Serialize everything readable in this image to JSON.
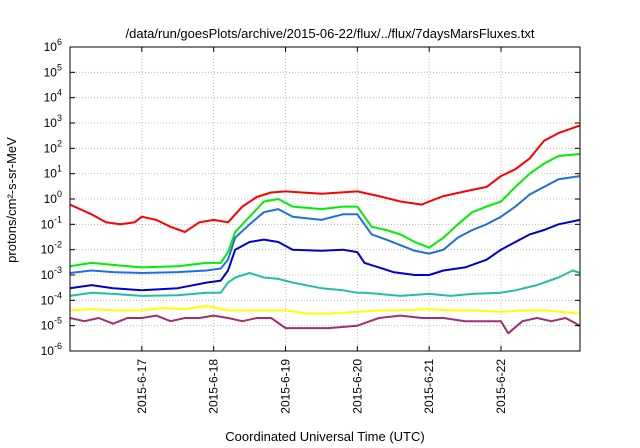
{
  "chart_data": {
    "type": "line",
    "title": "/data/run/goesPlots/archive/2015-06-22/flux/../flux/7daysMarsFluxes.txt",
    "xlabel": "Coordinated Universal Time (UTC)",
    "ylabel": "protons/cm²-s-sr-MeV",
    "y_scale": "log",
    "ylim": [
      1e-06,
      1000000.0
    ],
    "y_ticks": [
      {
        "value": 1e-06,
        "base": "10",
        "exp": "-6"
      },
      {
        "value": 1e-05,
        "base": "10",
        "exp": "-5"
      },
      {
        "value": 0.0001,
        "base": "10",
        "exp": "-4"
      },
      {
        "value": 0.001,
        "base": "10",
        "exp": "-3"
      },
      {
        "value": 0.01,
        "base": "10",
        "exp": "-2"
      },
      {
        "value": 0.1,
        "base": "10",
        "exp": "-1"
      },
      {
        "value": 1,
        "base": "10",
        "exp": "0"
      },
      {
        "value": 10,
        "base": "10",
        "exp": "1"
      },
      {
        "value": 100,
        "base": "10",
        "exp": "2"
      },
      {
        "value": 1000,
        "base": "10",
        "exp": "3"
      },
      {
        "value": 10000,
        "base": "10",
        "exp": "4"
      },
      {
        "value": 100000,
        "base": "10",
        "exp": "5"
      },
      {
        "value": 1000000,
        "base": "10",
        "exp": "6"
      }
    ],
    "xlim": [
      0,
      7.1
    ],
    "x_ticks": [
      {
        "value": 1,
        "label": "2015-6-17"
      },
      {
        "value": 2,
        "label": "2015-6-18"
      },
      {
        "value": 3,
        "label": "2015-6-19"
      },
      {
        "value": 4,
        "label": "2015-6-20"
      },
      {
        "value": 5,
        "label": "2015-6-21"
      },
      {
        "value": 6,
        "label": "2015-6-22"
      }
    ],
    "grid": true,
    "series": [
      {
        "color": "#ff0000",
        "x": [
          0,
          0.3,
          0.5,
          0.7,
          0.9,
          1.0,
          1.2,
          1.4,
          1.6,
          1.8,
          2.0,
          2.2,
          2.4,
          2.6,
          2.8,
          3.0,
          3.5,
          4.0,
          4.3,
          4.6,
          4.9,
          5.0,
          5.2,
          5.5,
          5.8,
          6.0,
          6.2,
          6.4,
          6.6,
          6.8,
          7.1
        ],
        "y": [
          0.6,
          0.25,
          0.12,
          0.1,
          0.12,
          0.2,
          0.15,
          0.08,
          0.05,
          0.12,
          0.15,
          0.12,
          0.5,
          1.2,
          1.8,
          2.0,
          1.6,
          2.0,
          1.3,
          0.8,
          0.6,
          0.8,
          1.3,
          2.0,
          3.0,
          8,
          15,
          40,
          200,
          400,
          800
        ]
      },
      {
        "color": "#00ee00",
        "x": [
          0,
          0.3,
          0.6,
          1.0,
          1.5,
          1.9,
          2.1,
          2.2,
          2.3,
          2.5,
          2.7,
          2.9,
          3.1,
          3.5,
          3.8,
          4.0,
          4.2,
          4.4,
          4.6,
          4.8,
          5.0,
          5.2,
          5.4,
          5.6,
          5.8,
          6.0,
          6.2,
          6.4,
          6.6,
          6.8,
          7.1
        ],
        "y": [
          0.0022,
          0.003,
          0.0025,
          0.002,
          0.0022,
          0.003,
          0.003,
          0.008,
          0.05,
          0.2,
          0.8,
          1.0,
          0.5,
          0.4,
          0.5,
          0.5,
          0.08,
          0.06,
          0.04,
          0.02,
          0.012,
          0.03,
          0.1,
          0.3,
          0.5,
          0.8,
          3,
          10,
          25,
          50,
          60
        ]
      },
      {
        "color": "#1e70e0",
        "x": [
          0,
          0.3,
          0.6,
          1.0,
          1.5,
          1.9,
          2.1,
          2.2,
          2.3,
          2.5,
          2.7,
          2.9,
          3.1,
          3.5,
          3.8,
          4.0,
          4.2,
          4.4,
          4.6,
          4.8,
          5.0,
          5.2,
          5.4,
          5.6,
          5.8,
          6.0,
          6.2,
          6.4,
          6.6,
          6.8,
          7.1
        ],
        "y": [
          0.0012,
          0.0015,
          0.0013,
          0.0012,
          0.0013,
          0.0015,
          0.0018,
          0.004,
          0.03,
          0.1,
          0.3,
          0.4,
          0.2,
          0.15,
          0.25,
          0.25,
          0.04,
          0.025,
          0.015,
          0.009,
          0.007,
          0.01,
          0.03,
          0.06,
          0.1,
          0.2,
          0.5,
          1.5,
          3,
          6,
          8
        ]
      },
      {
        "color": "#0000d0",
        "x": [
          0,
          0.3,
          0.6,
          1.0,
          1.5,
          1.9,
          2.1,
          2.2,
          2.3,
          2.5,
          2.7,
          2.9,
          3.1,
          3.5,
          3.8,
          4.0,
          4.1,
          4.3,
          4.5,
          4.8,
          5.0,
          5.2,
          5.5,
          5.8,
          6.0,
          6.2,
          6.4,
          6.6,
          6.8,
          7.1
        ],
        "y": [
          0.0003,
          0.0004,
          0.0003,
          0.00025,
          0.0003,
          0.0005,
          0.0006,
          0.0015,
          0.01,
          0.02,
          0.025,
          0.02,
          0.01,
          0.009,
          0.01,
          0.008,
          0.003,
          0.002,
          0.0013,
          0.001,
          0.001,
          0.0015,
          0.002,
          0.004,
          0.01,
          0.02,
          0.04,
          0.06,
          0.1,
          0.15
        ]
      },
      {
        "color": "#20c0a0",
        "x": [
          0,
          0.3,
          0.6,
          1.0,
          1.5,
          1.9,
          2.1,
          2.2,
          2.3,
          2.5,
          2.7,
          2.9,
          3.1,
          3.5,
          3.8,
          4.0,
          4.1,
          4.3,
          4.6,
          5.0,
          5.3,
          5.6,
          6.0,
          6.2,
          6.5,
          6.8,
          7.0,
          7.1
        ],
        "y": [
          0.00015,
          0.0002,
          0.00018,
          0.00015,
          0.00016,
          0.0002,
          0.0002,
          0.0005,
          0.0008,
          0.0012,
          0.0008,
          0.0007,
          0.0005,
          0.0003,
          0.00025,
          0.0002,
          0.0002,
          0.00018,
          0.00015,
          0.00018,
          0.00015,
          0.00018,
          0.0002,
          0.00025,
          0.0004,
          0.0008,
          0.0015,
          0.0012
        ]
      },
      {
        "color": "#ffff00",
        "x": [
          0,
          0.3,
          0.6,
          1.0,
          1.3,
          1.6,
          1.9,
          2.2,
          2.5,
          2.8,
          3.0,
          3.3,
          3.6,
          4.0,
          4.3,
          4.6,
          5.0,
          5.3,
          5.6,
          6.0,
          6.3,
          6.6,
          7.1
        ],
        "y": [
          4e-05,
          4.5e-05,
          4e-05,
          4e-05,
          5e-05,
          4.5e-05,
          6e-05,
          4e-05,
          4e-05,
          4e-05,
          4e-05,
          3e-05,
          3e-05,
          3.5e-05,
          4e-05,
          4e-05,
          4.5e-05,
          4e-05,
          4e-05,
          3.5e-05,
          4e-05,
          4e-05,
          3e-05
        ]
      },
      {
        "color": "#a03070",
        "x": [
          0,
          0.2,
          0.4,
          0.6,
          0.8,
          1.0,
          1.2,
          1.4,
          1.6,
          1.8,
          2.0,
          2.2,
          2.4,
          2.6,
          2.8,
          3.0,
          3.3,
          3.6,
          4.0,
          4.3,
          4.6,
          4.9,
          5.2,
          5.5,
          5.8,
          6.0,
          6.1,
          6.3,
          6.5,
          6.7,
          6.9,
          7.1
        ],
        "y": [
          2e-05,
          1.5e-05,
          2e-05,
          1.2e-05,
          2e-05,
          2e-05,
          2.5e-05,
          1.5e-05,
          2e-05,
          2e-05,
          2.5e-05,
          2e-05,
          1.5e-05,
          2e-05,
          2e-05,
          8e-06,
          8e-06,
          8e-06,
          1e-05,
          2e-05,
          2.5e-05,
          2e-05,
          2e-05,
          1.5e-05,
          1.5e-05,
          1.5e-05,
          5e-06,
          1.5e-05,
          2e-05,
          1.5e-05,
          2e-05,
          1e-05
        ]
      }
    ]
  }
}
